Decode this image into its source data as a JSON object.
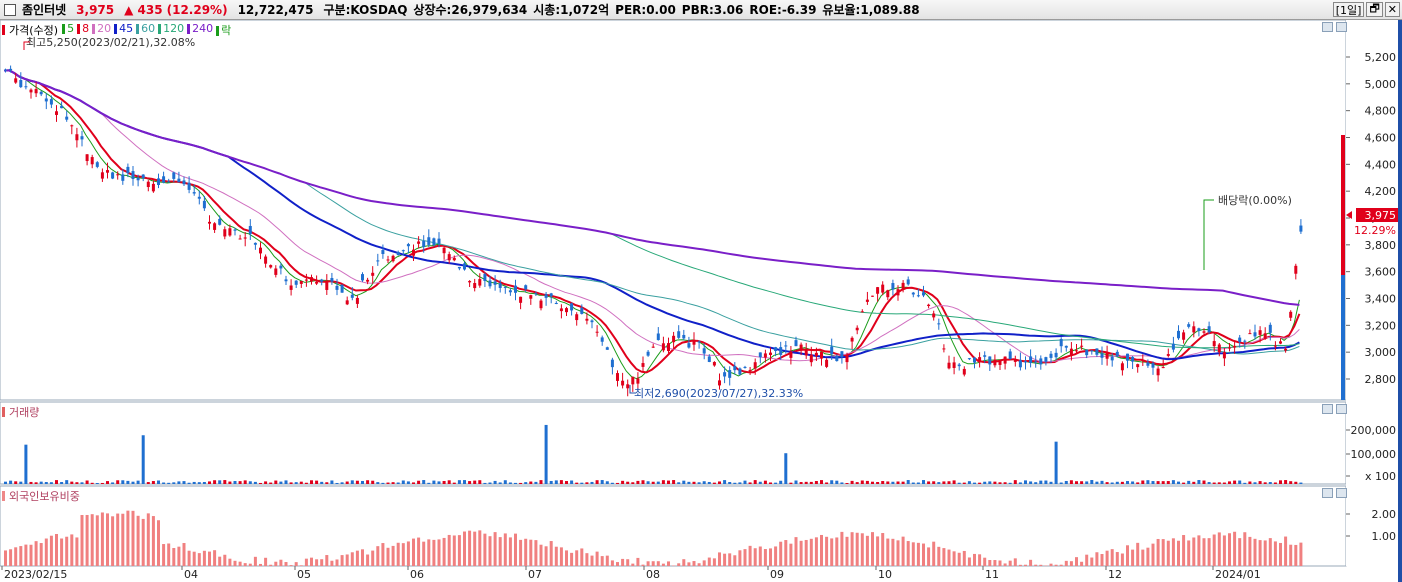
{
  "topbar": {
    "name": "좀인터넷",
    "price": "3,975",
    "change": "▲ 435",
    "change_pct": "(12.29%)",
    "volume": "12,722,475",
    "market": "구분:KOSDAQ",
    "shares": "상장수:26,979,634",
    "mcap": "시총:1,072억",
    "per": "PER:0.00",
    "pbr": "PBR:3.06",
    "roe": "ROE:-6.39",
    "float": "유보율:1,089.88",
    "period_button": "[1일]",
    "restore_icon": "restore-icon",
    "close_icon": "close-icon"
  },
  "legend": {
    "price_label": "가격(수정)",
    "ma": [
      {
        "label": "5",
        "color": "#1a9c1a"
      },
      {
        "label": "8",
        "color": "#e0001b"
      },
      {
        "label": "20",
        "color": "#d070c0"
      },
      {
        "label": "45",
        "color": "#1020c8"
      },
      {
        "label": "60",
        "color": "#3aa0a0"
      },
      {
        "label": "120",
        "color": "#28a878"
      },
      {
        "label": "240",
        "color": "#7a1fc8"
      },
      {
        "label": "락",
        "color": "#1a9c1a"
      }
    ]
  },
  "annotations": {
    "high": "최고5,250(2023/02/21),32.08%",
    "low": "최저2,690(2023/07/27),32.33%",
    "dividend": "배당락(0.00%)",
    "last_price_tag": "3,975",
    "last_pct_tag": "12.29%"
  },
  "volume_panel": {
    "title": "거래량",
    "ticks": [
      "200,000",
      "100,000",
      "x 100"
    ]
  },
  "foreign_panel": {
    "title": "외국인보유비중",
    "ticks": [
      "2.00",
      "1.00"
    ]
  },
  "chart_data": {
    "type": "candlestick",
    "price_axis": {
      "ticks": [
        "5,200",
        "5,000",
        "4,800",
        "4,600",
        "4,400",
        "4,200",
        "4,000",
        "3,800",
        "3,600",
        "3,400",
        "3,200",
        "3,000",
        "2,800"
      ]
    },
    "x_ticks": [
      "2023/02/15",
      "04",
      "05",
      "06",
      "07",
      "08",
      "09",
      "10",
      "11",
      "12",
      "2024/01"
    ],
    "high": 5250,
    "low": 2690,
    "last_close": 3975,
    "last_change_pct": 12.29,
    "ma_series": [
      {
        "name": "5",
        "color": "#1a9c1a"
      },
      {
        "name": "8",
        "color": "#e0001b"
      },
      {
        "name": "20",
        "color": "#d070c0"
      },
      {
        "name": "45",
        "color": "#1020c8"
      },
      {
        "name": "60",
        "color": "#3aa0a0"
      },
      {
        "name": "120",
        "color": "#28a878"
      },
      {
        "name": "240",
        "color": "#7a1fc8"
      }
    ]
  }
}
